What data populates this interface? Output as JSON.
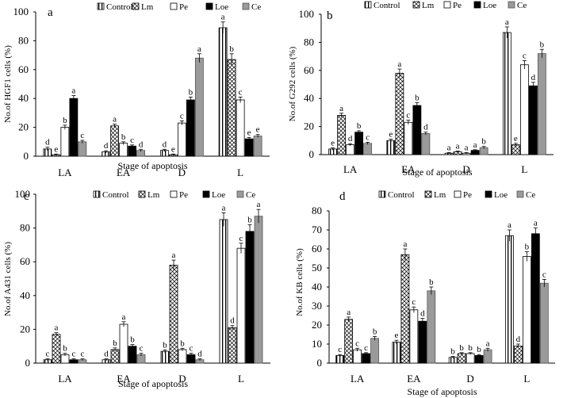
{
  "figure": {
    "series": [
      "Control",
      "Lm",
      "Pe",
      "Loe",
      "Ce"
    ],
    "categories": [
      "LA",
      "EA",
      "D",
      "L"
    ]
  },
  "chart_data": [
    {
      "type": "bar",
      "panel": "a",
      "title": "",
      "xlabel": "Stage of apoptosis",
      "ylabel": "No.of HGF1 cells (%)",
      "ylim": [
        0,
        100
      ],
      "yticks": [
        0,
        20,
        40,
        60,
        80,
        100
      ],
      "categories": [
        "LA",
        "EA",
        "D",
        "L"
      ],
      "series": [
        {
          "name": "Control",
          "values": [
            5,
            3,
            4,
            89
          ],
          "errors": [
            1.2,
            0.8,
            0.8,
            4
          ],
          "labels": [
            "d",
            "d",
            "d",
            "a"
          ]
        },
        {
          "name": "Lm",
          "values": [
            1,
            21,
            1,
            67
          ],
          "errors": [
            0.5,
            1.2,
            0.5,
            4
          ],
          "labels": [
            "e",
            "a",
            "e",
            "b"
          ]
        },
        {
          "name": "Pe",
          "values": [
            20,
            9,
            23,
            39
          ],
          "errors": [
            1.5,
            1,
            1.5,
            2
          ],
          "labels": [
            "b",
            "b",
            "c",
            "c"
          ]
        },
        {
          "name": "Loe",
          "values": [
            40,
            7,
            39,
            12
          ],
          "errors": [
            2,
            0.8,
            2,
            1
          ],
          "labels": [
            "a",
            "c",
            "b",
            "e"
          ]
        },
        {
          "name": "Ce",
          "values": [
            10,
            4,
            68,
            14
          ],
          "errors": [
            1,
            0.8,
            3,
            1
          ],
          "labels": [
            "c",
            "d",
            "a",
            "e"
          ]
        }
      ]
    },
    {
      "type": "bar",
      "panel": "b",
      "title": "",
      "xlabel": "Stage of apoptosis",
      "ylabel": "No.of G292 cells (%)",
      "ylim": [
        0,
        100
      ],
      "yticks": [
        0,
        20,
        40,
        60,
        80,
        100
      ],
      "categories": [
        "LA",
        "EA",
        "D",
        "L"
      ],
      "series": [
        {
          "name": "Control",
          "values": [
            4,
            10,
            1,
            87
          ],
          "errors": [
            0.8,
            1,
            0.5,
            4
          ],
          "labels": [
            "e",
            "e",
            "a",
            "a"
          ]
        },
        {
          "name": "Lm",
          "values": [
            28,
            58,
            2,
            7
          ],
          "errors": [
            1.5,
            3,
            0.5,
            1
          ],
          "labels": [
            "a",
            "a",
            "a",
            "e"
          ]
        },
        {
          "name": "Pe",
          "values": [
            7,
            23,
            1,
            64
          ],
          "errors": [
            0.8,
            1.5,
            0.5,
            3
          ],
          "labels": [
            "d",
            "c",
            "a",
            "c"
          ]
        },
        {
          "name": "Loe",
          "values": [
            16,
            35,
            3,
            49
          ],
          "errors": [
            1,
            2,
            0.5,
            2.5
          ],
          "labels": [
            "b",
            "b",
            "a",
            "d"
          ]
        },
        {
          "name": "Ce",
          "values": [
            8,
            15,
            5,
            72
          ],
          "errors": [
            0.8,
            1,
            0.8,
            3
          ],
          "labels": [
            "c",
            "d",
            "b",
            "b"
          ]
        }
      ]
    },
    {
      "type": "bar",
      "panel": "c",
      "title": "",
      "xlabel": "Stage of apoptosis",
      "ylabel": "No.of A431 cells (%)",
      "ylim": [
        0,
        100
      ],
      "yticks": [
        0,
        20,
        40,
        60,
        80,
        100
      ],
      "categories": [
        "LA",
        "EA",
        "D",
        "L"
      ],
      "series": [
        {
          "name": "Control",
          "values": [
            2,
            2,
            7,
            85
          ],
          "errors": [
            0.5,
            0.5,
            0.8,
            4
          ],
          "labels": [
            "c",
            "d",
            "b",
            "a"
          ]
        },
        {
          "name": "Lm",
          "values": [
            17,
            8,
            58,
            21
          ],
          "errors": [
            1,
            1,
            3,
            1.2
          ],
          "labels": [
            "a",
            "b",
            "a",
            "d"
          ]
        },
        {
          "name": "Pe",
          "values": [
            5,
            23,
            8,
            68
          ],
          "errors": [
            0.8,
            1.5,
            0.8,
            3
          ],
          "labels": [
            "b",
            "a",
            "b",
            "c"
          ]
        },
        {
          "name": "Loe",
          "values": [
            2,
            10,
            5,
            78
          ],
          "errors": [
            0.5,
            1,
            0.8,
            4
          ],
          "labels": [
            "c",
            "b",
            "c",
            "b"
          ]
        },
        {
          "name": "Ce",
          "values": [
            2,
            5,
            2,
            87
          ],
          "errors": [
            0.5,
            0.8,
            0.5,
            4
          ],
          "labels": [
            "c",
            "c",
            "d",
            "a"
          ]
        }
      ]
    },
    {
      "type": "bar",
      "panel": "d",
      "title": "",
      "xlabel": "Stage of apoptosis",
      "ylabel": "No.of KB cells (%)",
      "ylim": [
        0,
        80
      ],
      "yticks": [
        0,
        10,
        20,
        30,
        40,
        50,
        60,
        70,
        80
      ],
      "categories": [
        "LA",
        "EA",
        "D",
        "L"
      ],
      "series": [
        {
          "name": "Control",
          "values": [
            4,
            11,
            3,
            67
          ],
          "errors": [
            0.5,
            1,
            0.5,
            3
          ],
          "labels": [
            "c",
            "e",
            "b",
            "a"
          ]
        },
        {
          "name": "Lm",
          "values": [
            23,
            57,
            5,
            9
          ],
          "errors": [
            1.2,
            3,
            0.5,
            1
          ],
          "labels": [
            "a",
            "a",
            "b",
            "d"
          ]
        },
        {
          "name": "Pe",
          "values": [
            7,
            28,
            5,
            56
          ],
          "errors": [
            0.8,
            1.5,
            0.5,
            2.5
          ],
          "labels": [
            "c",
            "c",
            "b",
            "b"
          ]
        },
        {
          "name": "Loe",
          "values": [
            5,
            22,
            4,
            68
          ],
          "errors": [
            0.5,
            1.5,
            0.5,
            3
          ],
          "labels": [
            "c",
            "d",
            "b",
            "a"
          ]
        },
        {
          "name": "Ce",
          "values": [
            13,
            38,
            7,
            42
          ],
          "errors": [
            1,
            2,
            0.8,
            2
          ],
          "labels": [
            "b",
            "b",
            "a",
            "c"
          ]
        }
      ]
    }
  ]
}
